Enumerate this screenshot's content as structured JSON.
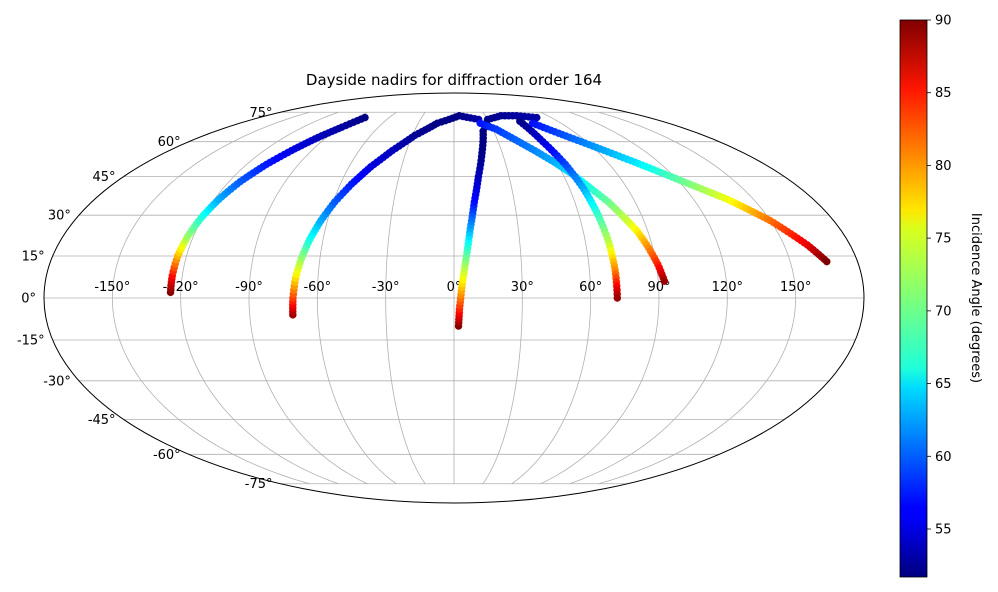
{
  "chart_data": {
    "type": "scatter",
    "projection": "mollweide",
    "title": "Dayside nadirs for diffraction order 164",
    "xlabel": "",
    "ylabel": "",
    "grid": true,
    "xlim": [
      -180,
      180
    ],
    "ylim": [
      -90,
      90
    ],
    "lon_ticks": [
      -150,
      -120,
      -90,
      -60,
      -30,
      0,
      30,
      60,
      90,
      120,
      150
    ],
    "lon_tick_labels": [
      "-150°",
      "-120°",
      "-90°",
      "-60°",
      "-30°",
      "0°",
      "30°",
      "60°",
      "90°",
      "120°",
      "150°"
    ],
    "lat_ticks": [
      75,
      60,
      45,
      30,
      15,
      0,
      -15,
      -30,
      -45,
      -60,
      -75
    ],
    "lat_tick_labels": [
      "75°",
      "60°",
      "45°",
      "30°",
      "15°",
      "0°",
      "-15°",
      "-30°",
      "-45°",
      "-60°",
      "-75°"
    ],
    "colormap": "jet",
    "colorbar": {
      "label": "Incidence Angle (degrees)",
      "range": [
        51.7,
        90
      ],
      "ticks": [
        55,
        60,
        65,
        70,
        75,
        80,
        85,
        90
      ],
      "tick_labels": [
        "55",
        "60",
        "65",
        "70",
        "75",
        "80",
        "85",
        "90"
      ]
    },
    "series": [
      {
        "lon": [
          -124.5,
          -124.4,
          -123.9,
          -122.6,
          -120.6,
          -117.8,
          -114.0,
          -108.6,
          -102.7,
          -96.0,
          -89.0,
          -82.3
        ],
        "lat": [
          2,
          8,
          15,
          22,
          29,
          36,
          43,
          50,
          56,
          62,
          67,
          72
        ],
        "incidence": [
          90,
          85,
          78.5,
          72,
          67.5,
          63,
          60,
          57.5,
          55.5,
          54,
          53,
          52
        ]
      },
      {
        "lon": [
          -71.0,
          -70.7,
          -69.9,
          -68.3,
          -66.1,
          -63.1,
          -59.3,
          -54.1,
          -47.6,
          -39.0,
          -28.2,
          -14.0,
          5.0,
          22.0
        ],
        "lat": [
          -6,
          0,
          7,
          14,
          21,
          28,
          35,
          42,
          49,
          56,
          63,
          69,
          73,
          71
        ],
        "incidence": [
          89,
          83,
          77,
          72,
          67,
          63,
          60,
          57.5,
          55.5,
          54,
          52.5,
          52,
          52,
          53
        ]
      },
      {
        "lon": [
          2.0,
          2.4,
          3.6,
          5.6,
          7.6,
          10.1,
          13.3,
          17.4,
          22.0,
          30.0,
          45.0,
          60.0,
          76.5
        ],
        "lat": [
          -10,
          -4,
          5,
          15,
          25,
          35,
          45,
          55,
          65,
          71,
          73,
          73,
          72
        ],
        "incidence": [
          90,
          84,
          77,
          70,
          63,
          57,
          54,
          52,
          51.7,
          52,
          52.5,
          53,
          53
        ]
      },
      {
        "lon": [
          22.0,
          32.6,
          42.2,
          51.0,
          58.8,
          65.2,
          71.4,
          76.7,
          81.3,
          85.1,
          88.1,
          90.7,
          92.7
        ],
        "lat": [
          69,
          66,
          61,
          56,
          51,
          46,
          40,
          35,
          29,
          24,
          18,
          12,
          6
        ],
        "incidence": [
          57,
          58.5,
          60,
          61.5,
          63,
          65,
          67.5,
          70,
          73,
          76,
          80,
          84,
          89
        ]
      },
      {
        "lon": [
          57.0,
          60.3,
          64.5,
          67.3,
          69.2,
          70.6,
          71.4,
          71.7
        ],
        "lat": [
          70,
          60,
          50,
          40,
          30,
          20,
          10,
          0
        ],
        "incidence": [
          52,
          55,
          59,
          63,
          68,
          73,
          80,
          89
        ]
      },
      {
        "lon": [
          66.0,
          77.2,
          90.8,
          106.0,
          122.3,
          137.0,
          149.9,
          160.6,
          166.3
        ],
        "lat": [
          69,
          64,
          58,
          51,
          43,
          36,
          28,
          19,
          13
        ],
        "incidence": [
          57,
          59,
          62,
          65,
          70,
          75,
          81,
          86,
          90
        ]
      }
    ]
  }
}
